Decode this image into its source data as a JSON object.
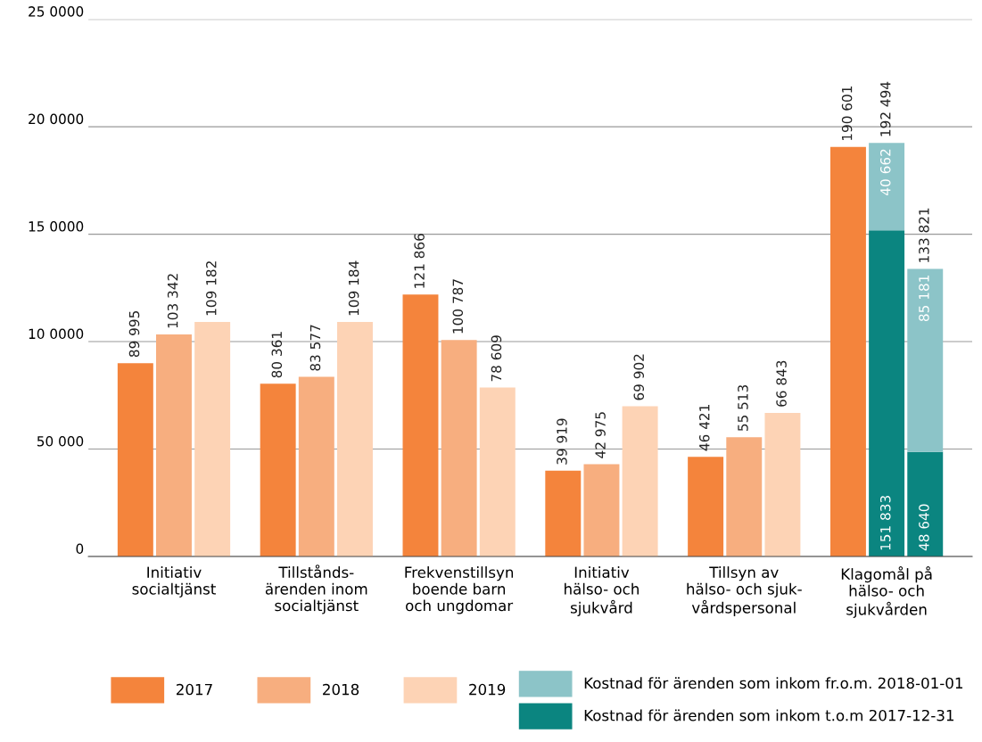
{
  "chart_data": {
    "type": "bar",
    "categories": [
      "Initiativ\nsocialtjänst",
      "Tillstånds-\närenden inom\nsocialtjänst",
      "Frekvenstillsyn\nboende barn\noch ungdomar",
      "Initiativ\nhälso- och\nsjukvård",
      "Tillsyn av\nhälso- och sjuk-\nvårdspersonal",
      "Klagomål på\nhälso- och\nsjukvården"
    ],
    "series": [
      {
        "name": "2017",
        "color": "#f4843c",
        "values": [
          89995,
          80361,
          121866,
          39919,
          46421,
          190601
        ]
      },
      {
        "name": "2018",
        "color": "#f7ae7f",
        "values": [
          103342,
          83577,
          100787,
          42975,
          55513,
          null
        ]
      },
      {
        "name": "2019",
        "color": "#fdd3b5",
        "values": [
          109182,
          109184,
          78609,
          69902,
          66843,
          null
        ]
      },
      {
        "name": "Kostnad för ärenden som inkom t.o.m 2017-12-31",
        "color": "#0b8580",
        "values": [
          null,
          null,
          null,
          null,
          null,
          151833
        ]
      },
      {
        "color": "#0b8580",
        "values": [
          null,
          null,
          null,
          null,
          null,
          48640
        ]
      },
      {
        "name": "Kostnad för ärenden som inkom fr.o.m. 2018-01-01",
        "color": "#8cc4c8",
        "values": [
          null,
          null,
          null,
          null,
          null,
          40662
        ],
        "base": [
          null,
          null,
          null,
          null,
          null,
          151833
        ]
      },
      {
        "color": "#8cc4c8",
        "values": [
          null,
          null,
          null,
          null,
          null,
          85181
        ],
        "base": [
          null,
          null,
          null,
          null,
          null,
          48640
        ]
      }
    ],
    "annotations": [
      "192 494",
      "133 821"
    ],
    "ylim": [
      0,
      250000
    ],
    "yticks": [
      0,
      {
        "value": 50000,
        "label": "50 000"
      },
      {
        "value": 100000,
        "label": "10 0000"
      },
      {
        "value": 150000,
        "label": "15 0000"
      },
      {
        "value": 200000,
        "label": "20 0000"
      },
      {
        "value": 250000,
        "label": "25 0000"
      }
    ],
    "grid": "y",
    "legend": "bottom",
    "data_labels": true
  }
}
